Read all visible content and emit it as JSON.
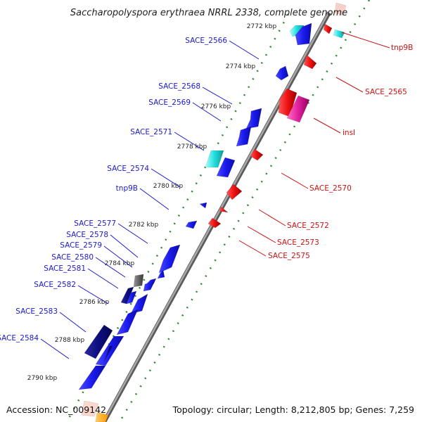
{
  "title": "Saccharopolyspora erythraea NRRL 2338, complete genome",
  "footer": {
    "accession": "Accession: NC_009142",
    "summary": "Topology: circular; Length: 8,212,805 bp; Genes: 7,259"
  },
  "colors": {
    "backbone": "#8a8a8a",
    "ticks": "#2a8a2a",
    "blue": "#1a1aee",
    "navy": "#0d0d80",
    "cyan": "#22dddd",
    "gray": "#666666",
    "red": "#ee1111",
    "pink": "#e0209a",
    "orange": "#ff9900",
    "peach": "#f7c6c0",
    "label_blue": "#1a1acc",
    "label_red": "#cc1111"
  },
  "kbp_ticks": [
    "2772 kbp",
    "2774 kbp",
    "2776 kbp",
    "2778 kbp",
    "2780 kbp",
    "2782 kbp",
    "2784 kbp",
    "2786 kbp",
    "2788 kbp",
    "2790 kbp"
  ],
  "genes_forward": [
    {
      "label": "SACE_2566",
      "color": "blue"
    },
    {
      "label": "SACE_2568",
      "color": "blue"
    },
    {
      "label": "SACE_2569",
      "color": "blue"
    },
    {
      "label": "SACE_2571",
      "color": "cyan"
    },
    {
      "label": "SACE_2574",
      "color": "blue"
    },
    {
      "label": "tnp9B",
      "color": "blue"
    },
    {
      "label": "SACE_2577",
      "color": "blue"
    },
    {
      "label": "SACE_2578",
      "color": "blue"
    },
    {
      "label": "SACE_2579",
      "color": "blue"
    },
    {
      "label": "SACE_2580",
      "color": "blue"
    },
    {
      "label": "SACE_2581",
      "color": "gray"
    },
    {
      "label": "SACE_2582",
      "color": "navy"
    },
    {
      "label": "SACE_2583",
      "color": "blue"
    },
    {
      "label": "SACE_2584",
      "color": "navy"
    }
  ],
  "genes_reverse": [
    {
      "label": "tnp9B",
      "color": "cyan"
    },
    {
      "label": "SACE_2565",
      "color": "red"
    },
    {
      "label": "insI",
      "color": "pink"
    },
    {
      "label": "SACE_2570",
      "color": "red"
    },
    {
      "label": "SACE_2572",
      "color": "red"
    },
    {
      "label": "SACE_2573",
      "color": "red"
    },
    {
      "label": "SACE_2575",
      "color": "red"
    }
  ]
}
